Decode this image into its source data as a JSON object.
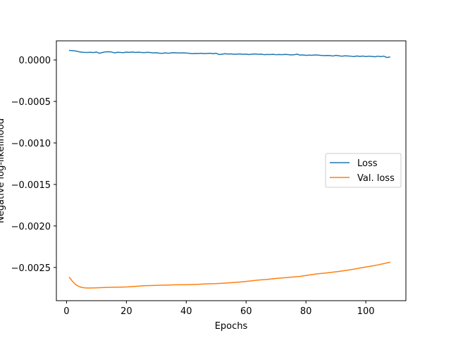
{
  "chart_data": {
    "type": "line",
    "xlabel": "Epochs",
    "ylabel": "Negative log-likelihood",
    "xlim": [
      -3.4,
      113.4
    ],
    "ylim": [
      -0.0029,
      0.00023
    ],
    "xticks": [
      0,
      20,
      40,
      60,
      80,
      100
    ],
    "xtick_labels": [
      "0",
      "20",
      "40",
      "60",
      "80",
      "100"
    ],
    "yticks": [
      0.0,
      -0.0005,
      -0.001,
      -0.0015,
      -0.002,
      -0.0025
    ],
    "ytick_labels": [
      "0.0000",
      "−0.0005",
      "−0.0010",
      "−0.0015",
      "−0.0020",
      "−0.0025"
    ],
    "legend_position": "center-right",
    "grid": false,
    "series": [
      {
        "name": "Loss",
        "color": "#1f77b4",
        "x": [
          1,
          2,
          3,
          4,
          5,
          6,
          7,
          8,
          9,
          10,
          11,
          12,
          13,
          14,
          15,
          16,
          17,
          18,
          19,
          20,
          21,
          22,
          23,
          24,
          25,
          26,
          27,
          28,
          29,
          30,
          31,
          32,
          33,
          34,
          35,
          36,
          37,
          38,
          39,
          40,
          41,
          42,
          43,
          44,
          45,
          46,
          47,
          48,
          49,
          50,
          51,
          52,
          53,
          54,
          55,
          56,
          57,
          58,
          59,
          60,
          61,
          62,
          63,
          64,
          65,
          66,
          67,
          68,
          69,
          70,
          71,
          72,
          73,
          74,
          75,
          76,
          77,
          78,
          79,
          80,
          81,
          82,
          83,
          84,
          85,
          86,
          87,
          88,
          89,
          90,
          91,
          92,
          93,
          94,
          95,
          96,
          97,
          98,
          99,
          100,
          101,
          102,
          103,
          104,
          105,
          106,
          107,
          108
        ],
        "values": [
          0.000115,
          0.000112,
          0.000108,
          0.0001,
          9.3e-05,
          9.1e-05,
          9e-05,
          9.2e-05,
          8.9e-05,
          9.5e-05,
          8e-05,
          9e-05,
          9.7e-05,
          9.8e-05,
          9.6e-05,
          8.5e-05,
          9.2e-05,
          9e-05,
          8.8e-05,
          9.4e-05,
          9.1e-05,
          9.5e-05,
          9e-05,
          9.3e-05,
          9e-05,
          8.8e-05,
          9.2e-05,
          8.9e-05,
          8.5e-05,
          8.7e-05,
          8.2e-05,
          7.9e-05,
          8.5e-05,
          8e-05,
          8.6e-05,
          8.7e-05,
          8.5e-05,
          8.4e-05,
          8.6e-05,
          8.3e-05,
          8e-05,
          7.5e-05,
          7.8e-05,
          7.7e-05,
          8e-05,
          7.6e-05,
          7.8e-05,
          8e-05,
          7.5e-05,
          8e-05,
          6.5e-05,
          7e-05,
          7.5e-05,
          7.1e-05,
          7.3e-05,
          6.8e-05,
          7e-05,
          7.2e-05,
          6.8e-05,
          7e-05,
          6.5e-05,
          7e-05,
          7.2e-05,
          6.8e-05,
          7e-05,
          6.4e-05,
          6.6e-05,
          6.5e-05,
          6.8e-05,
          6.3e-05,
          6.6e-05,
          6.4e-05,
          6.7e-05,
          6.5e-05,
          6e-05,
          6.2e-05,
          7e-05,
          5.8e-05,
          6e-05,
          5.5e-05,
          5.8e-05,
          5.6e-05,
          6e-05,
          5.8e-05,
          5.5e-05,
          5.2e-05,
          5.4e-05,
          5.3e-05,
          4.7e-05,
          5.5e-05,
          5e-05,
          4.5e-05,
          5e-05,
          4.8e-05,
          4.5e-05,
          4e-05,
          4.8e-05,
          4.2e-05,
          4.7e-05,
          4e-05,
          4.5e-05,
          4.2e-05,
          3.8e-05,
          4.5e-05,
          4e-05,
          4.5e-05,
          3e-05,
          3.5e-05
        ]
      },
      {
        "name": "Val. loss",
        "color": "#ff7f0e",
        "x": [
          1,
          2,
          3,
          4,
          5,
          6,
          7,
          8,
          9,
          10,
          12,
          14,
          16,
          18,
          20,
          22,
          24,
          26,
          28,
          30,
          32,
          34,
          36,
          38,
          40,
          42,
          44,
          46,
          48,
          50,
          52,
          54,
          56,
          58,
          60,
          62,
          64,
          66,
          68,
          70,
          72,
          74,
          76,
          78,
          80,
          82,
          84,
          86,
          88,
          90,
          92,
          94,
          96,
          98,
          100,
          102,
          104,
          106,
          108
        ],
        "values": [
          -0.00262,
          -0.002668,
          -0.002705,
          -0.002727,
          -0.00274,
          -0.002745,
          -0.002747,
          -0.002747,
          -0.002746,
          -0.002745,
          -0.002742,
          -0.00274,
          -0.002738,
          -0.002737,
          -0.002735,
          -0.00273,
          -0.002725,
          -0.00272,
          -0.002718,
          -0.002716,
          -0.002713,
          -0.002711,
          -0.002709,
          -0.002708,
          -0.002708,
          -0.002706,
          -0.002703,
          -0.002699,
          -0.002696,
          -0.002694,
          -0.00269,
          -0.002686,
          -0.002681,
          -0.002675,
          -0.002668,
          -0.00266,
          -0.002652,
          -0.002647,
          -0.00264,
          -0.002632,
          -0.002626,
          -0.00262,
          -0.002614,
          -0.002607,
          -0.002597,
          -0.002586,
          -0.002576,
          -0.002569,
          -0.002561,
          -0.002552,
          -0.002543,
          -0.002532,
          -0.00252,
          -0.002507,
          -0.002495,
          -0.002482,
          -0.002469,
          -0.002454,
          -0.002437
        ]
      }
    ]
  }
}
